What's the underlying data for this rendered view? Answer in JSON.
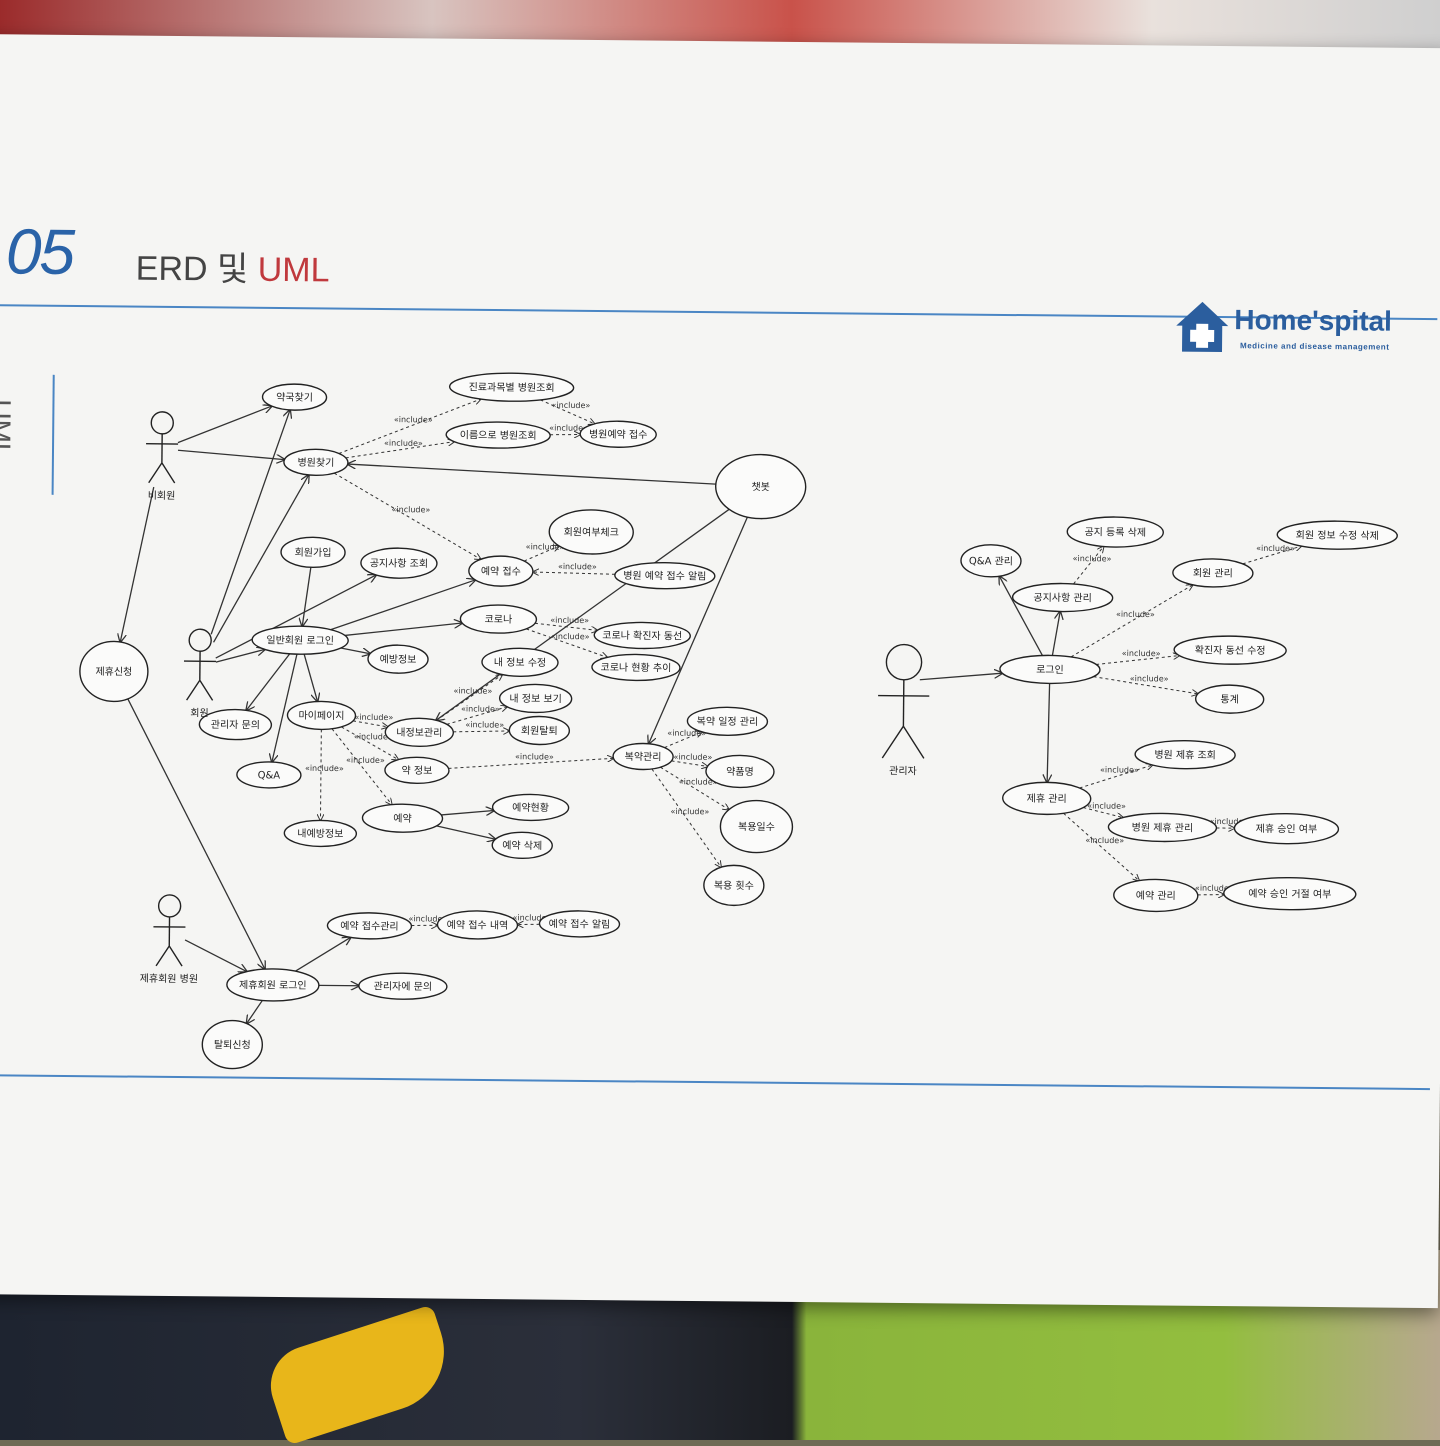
{
  "page": {
    "number": "05",
    "title_prefix": "ERD 및 ",
    "title_accent": "UML",
    "side_label": "UML"
  },
  "logo": {
    "name": "Home'spital",
    "tagline": "Medicine and disease management",
    "icon": "house-cross-icon",
    "color": "#2b5e9e"
  },
  "colors": {
    "accent_blue": "#4a86c4",
    "accent_red": "#c0393d"
  },
  "include_label": "«include»",
  "actors": [
    {
      "id": "a_guest",
      "label": "비회원"
    },
    {
      "id": "a_member",
      "label": "회원"
    },
    {
      "id": "a_partner",
      "label": "제휴회원 병원"
    },
    {
      "id": "a_admin",
      "label": "관리자"
    }
  ],
  "usecases": [
    {
      "id": "u_pharm_find",
      "label": "약국찾기"
    },
    {
      "id": "u_hosp_find",
      "label": "병원찾기"
    },
    {
      "id": "u_dept_search",
      "label": "진료과목별 병원조회"
    },
    {
      "id": "u_name_search",
      "label": "이름으로 병원조회"
    },
    {
      "id": "u_hosp_reserve",
      "label": "병원예약 접수"
    },
    {
      "id": "u_chatbot",
      "label": "챗봇"
    },
    {
      "id": "u_member_check",
      "label": "회원여부체크"
    },
    {
      "id": "u_signup",
      "label": "회원가입"
    },
    {
      "id": "u_notice_view",
      "label": "공지사항 조회"
    },
    {
      "id": "u_reserve_recv",
      "label": "예약 접수"
    },
    {
      "id": "u_hosp_alarm",
      "label": "병원 예약 접수 알림"
    },
    {
      "id": "u_member_login",
      "label": "일반회원 로그인"
    },
    {
      "id": "u_corona",
      "label": "코로나"
    },
    {
      "id": "u_corona_route",
      "label": "코로나 확진자 동선"
    },
    {
      "id": "u_corona_trend",
      "label": "코로나 현황 추이"
    },
    {
      "id": "u_prevent",
      "label": "예방정보"
    },
    {
      "id": "u_info_edit",
      "label": "내 정보 수정"
    },
    {
      "id": "u_info_view",
      "label": "내 정보 보기"
    },
    {
      "id": "u_mypage",
      "label": "마이페이지"
    },
    {
      "id": "u_myinfo",
      "label": "내정보관리"
    },
    {
      "id": "u_withdraw",
      "label": "회원탈퇴"
    },
    {
      "id": "u_ask_admin",
      "label": "관리자 문의"
    },
    {
      "id": "u_qna",
      "label": "Q&A"
    },
    {
      "id": "u_med_info",
      "label": "약 정보"
    },
    {
      "id": "u_dose_mgmt",
      "label": "복약관리"
    },
    {
      "id": "u_dose_sched",
      "label": "복약 일정 관리"
    },
    {
      "id": "u_med_name",
      "label": "약품명"
    },
    {
      "id": "u_dose_days",
      "label": "복용일수"
    },
    {
      "id": "u_dose_count",
      "label": "복용 횟수"
    },
    {
      "id": "u_reserve",
      "label": "예약"
    },
    {
      "id": "u_reserve_status",
      "label": "예약현황"
    },
    {
      "id": "u_reserve_del",
      "label": "예약 삭제"
    },
    {
      "id": "u_my_reserve",
      "label": "내예방정보"
    },
    {
      "id": "u_partner_apply",
      "label": "제휴신청"
    },
    {
      "id": "u_partner_login",
      "label": "제휴회원 로그인"
    },
    {
      "id": "u_reserve_mgmt_p",
      "label": "예약 접수관리"
    },
    {
      "id": "u_reserve_hist",
      "label": "예약 접수 내역"
    },
    {
      "id": "u_reserve_alarm",
      "label": "예약 접수 알림"
    },
    {
      "id": "u_ask_admin2",
      "label": "관리자에 문의"
    },
    {
      "id": "u_leave_apply",
      "label": "탈퇴신청"
    },
    {
      "id": "u_admin_login",
      "label": "로그인"
    },
    {
      "id": "u_qna_mgmt",
      "label": "Q&A 관리"
    },
    {
      "id": "u_notice_crud",
      "label": "공지 등록 삭제"
    },
    {
      "id": "u_notice_mgmt",
      "label": "공지사항 관리"
    },
    {
      "id": "u_member_mgmt",
      "label": "회원 관리"
    },
    {
      "id": "u_member_edit",
      "label": "회원 정보 수정 삭제"
    },
    {
      "id": "u_route_edit",
      "label": "확진자 동선 수정"
    },
    {
      "id": "u_stats",
      "label": "통계"
    },
    {
      "id": "u_partner_view",
      "label": "병원 제휴 조회"
    },
    {
      "id": "u_partner_mgmt",
      "label": "제휴 관리"
    },
    {
      "id": "u_hosp_partner_mgmt",
      "label": "병원 제휴 관리"
    },
    {
      "id": "u_partner_approve",
      "label": "제휴 승인 여부"
    },
    {
      "id": "u_reserve_mgmt_a",
      "label": "예약 관리"
    },
    {
      "id": "u_reserve_approve",
      "label": "예약 승인 거절 여부"
    }
  ]
}
